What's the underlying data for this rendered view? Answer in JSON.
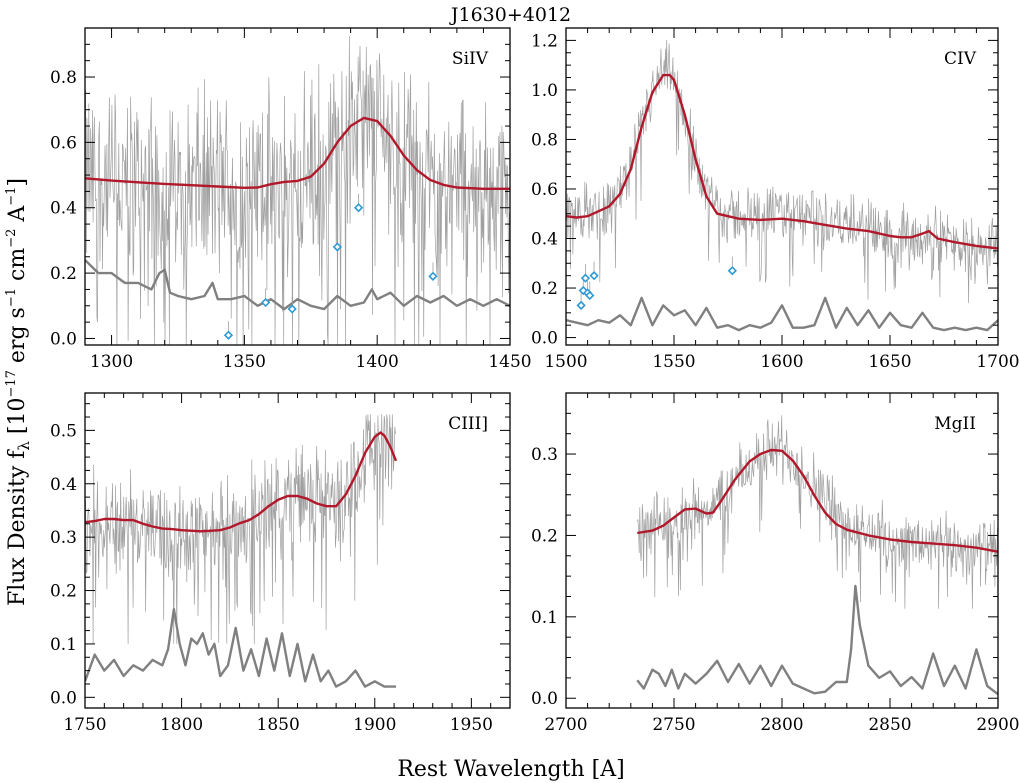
{
  "figure": {
    "title": "J1630+4012",
    "xlabel": "Rest Wavelength [A]",
    "ylabel_main": "Flux Density f",
    "ylabel_sub": "λ",
    "ylabel_unit_a": " [10",
    "ylabel_exp1": "−17",
    "ylabel_unit_b": " erg s",
    "ylabel_exp2": "−1",
    "ylabel_unit_c": " cm",
    "ylabel_exp3": "−2",
    "ylabel_unit_d": " A",
    "ylabel_exp4": "−1",
    "ylabel_close": "]"
  },
  "colors": {
    "model": "#b2182b",
    "error": "#808080",
    "spectrum": "#a0a0a0",
    "absorption_marker": "#2c9ad4"
  },
  "chart_data": [
    {
      "type": "line",
      "label": "SiIV",
      "xlim": [
        1290,
        1450
      ],
      "ylim": [
        -0.02,
        0.95
      ],
      "xticks": [
        1300,
        1350,
        1400,
        1450
      ],
      "yticks": [
        0.0,
        0.2,
        0.4,
        0.6,
        0.8
      ],
      "yticklabels": [
        "0.0",
        "0.2",
        "0.4",
        "0.6",
        "0.8"
      ],
      "model": {
        "x": [
          1290,
          1300,
          1310,
          1320,
          1330,
          1340,
          1350,
          1355,
          1360,
          1365,
          1370,
          1375,
          1380,
          1385,
          1390,
          1395,
          1400,
          1405,
          1410,
          1415,
          1420,
          1425,
          1430,
          1440,
          1450
        ],
        "y": [
          0.49,
          0.483,
          0.478,
          0.473,
          0.469,
          0.465,
          0.461,
          0.462,
          0.472,
          0.479,
          0.482,
          0.495,
          0.535,
          0.6,
          0.65,
          0.675,
          0.665,
          0.62,
          0.56,
          0.515,
          0.485,
          0.47,
          0.462,
          0.458,
          0.458
        ]
      },
      "error": {
        "x": [
          1290,
          1295,
          1300,
          1305,
          1310,
          1315,
          1318,
          1320,
          1322,
          1325,
          1330,
          1335,
          1338,
          1340,
          1345,
          1350,
          1355,
          1360,
          1365,
          1370,
          1375,
          1380,
          1385,
          1390,
          1395,
          1398,
          1400,
          1405,
          1410,
          1415,
          1420,
          1425,
          1430,
          1435,
          1440,
          1445,
          1450
        ],
        "y": [
          0.24,
          0.2,
          0.2,
          0.17,
          0.17,
          0.15,
          0.2,
          0.21,
          0.14,
          0.13,
          0.12,
          0.13,
          0.17,
          0.12,
          0.12,
          0.13,
          0.1,
          0.12,
          0.09,
          0.12,
          0.1,
          0.09,
          0.13,
          0.1,
          0.11,
          0.15,
          0.12,
          0.14,
          0.1,
          0.13,
          0.11,
          0.13,
          0.1,
          0.12,
          0.1,
          0.12,
          0.1
        ]
      },
      "spectrum": {
        "baseline_x": [
          1290,
          1350,
          1370,
          1380,
          1390,
          1395,
          1400,
          1410,
          1420,
          1450
        ],
        "baseline_y": [
          0.48,
          0.46,
          0.48,
          0.53,
          0.65,
          0.67,
          0.66,
          0.56,
          0.48,
          0.46
        ],
        "scatter": 0.3,
        "clip": [
          -0.02,
          0.95
        ]
      },
      "markers": {
        "x": [
          1344,
          1358,
          1368,
          1385,
          1393,
          1421
        ],
        "y": [
          0.01,
          0.11,
          0.09,
          0.28,
          0.4,
          0.19
        ]
      }
    },
    {
      "type": "line",
      "label": "CIV",
      "xlim": [
        1500,
        1700
      ],
      "ylim": [
        -0.03,
        1.25
      ],
      "xticks": [
        1500,
        1550,
        1600,
        1650,
        1700
      ],
      "yticks": [
        0.0,
        0.2,
        0.4,
        0.6,
        0.8,
        1.0,
        1.2
      ],
      "yticklabels": [
        "0.0",
        "0.2",
        "0.4",
        "0.6",
        "0.8",
        "1.0",
        "1.2"
      ],
      "model": {
        "x": [
          1500,
          1505,
          1510,
          1515,
          1520,
          1525,
          1530,
          1535,
          1540,
          1545,
          1548,
          1550,
          1555,
          1560,
          1565,
          1570,
          1580,
          1590,
          1600,
          1610,
          1620,
          1630,
          1640,
          1650,
          1655,
          1660,
          1665,
          1668,
          1672,
          1680,
          1690,
          1700
        ],
        "y": [
          0.49,
          0.485,
          0.49,
          0.51,
          0.53,
          0.58,
          0.68,
          0.85,
          0.99,
          1.06,
          1.06,
          1.04,
          0.9,
          0.72,
          0.57,
          0.5,
          0.48,
          0.475,
          0.48,
          0.47,
          0.455,
          0.44,
          0.43,
          0.41,
          0.405,
          0.405,
          0.42,
          0.43,
          0.4,
          0.385,
          0.37,
          0.36
        ]
      },
      "error": {
        "x": [
          1500,
          1505,
          1510,
          1515,
          1520,
          1525,
          1530,
          1535,
          1540,
          1545,
          1550,
          1555,
          1560,
          1565,
          1570,
          1575,
          1580,
          1585,
          1590,
          1595,
          1600,
          1605,
          1610,
          1615,
          1620,
          1625,
          1630,
          1635,
          1640,
          1645,
          1650,
          1655,
          1660,
          1665,
          1670,
          1675,
          1680,
          1685,
          1690,
          1695,
          1700
        ],
        "y": [
          0.07,
          0.06,
          0.05,
          0.07,
          0.06,
          0.09,
          0.05,
          0.16,
          0.05,
          0.13,
          0.09,
          0.11,
          0.05,
          0.12,
          0.04,
          0.05,
          0.03,
          0.05,
          0.04,
          0.06,
          0.13,
          0.04,
          0.04,
          0.05,
          0.16,
          0.04,
          0.12,
          0.05,
          0.11,
          0.04,
          0.1,
          0.05,
          0.04,
          0.1,
          0.04,
          0.03,
          0.04,
          0.03,
          0.04,
          0.03,
          0.07
        ]
      },
      "spectrum": {
        "baseline_x": [
          1500,
          1520,
          1530,
          1540,
          1547,
          1555,
          1565,
          1575,
          1600,
          1650,
          1700
        ],
        "baseline_y": [
          0.49,
          0.53,
          0.68,
          0.99,
          1.08,
          0.9,
          0.58,
          0.49,
          0.5,
          0.42,
          0.37
        ],
        "scatter": 0.12,
        "clip": [
          -0.03,
          1.25
        ]
      },
      "markers": {
        "x": [
          1507,
          1508,
          1509,
          1510,
          1511,
          1513,
          1577
        ],
        "y": [
          0.13,
          0.19,
          0.24,
          0.18,
          0.17,
          0.25,
          0.27
        ]
      }
    },
    {
      "type": "line",
      "label": "CIII]",
      "xlim": [
        1750,
        1970
      ],
      "ylim": [
        -0.02,
        0.57
      ],
      "xticks": [
        1750,
        1800,
        1850,
        1900,
        1950
      ],
      "yticks": [
        0.0,
        0.1,
        0.2,
        0.3,
        0.4,
        0.5
      ],
      "yticklabels": [
        "0.0",
        "0.1",
        "0.2",
        "0.3",
        "0.4",
        "0.5"
      ],
      "model": {
        "x": [
          1750,
          1755,
          1760,
          1765,
          1770,
          1775,
          1780,
          1785,
          1790,
          1795,
          1800,
          1810,
          1820,
          1825,
          1830,
          1835,
          1840,
          1845,
          1850,
          1855,
          1860,
          1865,
          1870,
          1875,
          1880,
          1885,
          1890,
          1895,
          1900,
          1903,
          1905,
          1908,
          1911
        ],
        "y": [
          0.328,
          0.33,
          0.334,
          0.334,
          0.332,
          0.332,
          0.325,
          0.32,
          0.316,
          0.315,
          0.313,
          0.311,
          0.313,
          0.318,
          0.326,
          0.332,
          0.343,
          0.358,
          0.37,
          0.377,
          0.377,
          0.372,
          0.363,
          0.358,
          0.358,
          0.38,
          0.415,
          0.458,
          0.488,
          0.496,
          0.49,
          0.47,
          0.443
        ]
      },
      "error": {
        "x": [
          1750,
          1755,
          1760,
          1765,
          1770,
          1775,
          1780,
          1785,
          1790,
          1793,
          1796,
          1799,
          1802,
          1805,
          1808,
          1811,
          1814,
          1817,
          1820,
          1824,
          1828,
          1832,
          1836,
          1840,
          1844,
          1848,
          1852,
          1856,
          1860,
          1864,
          1868,
          1872,
          1876,
          1880,
          1885,
          1890,
          1895,
          1900,
          1905,
          1911
        ],
        "y": [
          0.03,
          0.08,
          0.05,
          0.07,
          0.04,
          0.06,
          0.05,
          0.07,
          0.06,
          0.09,
          0.165,
          0.1,
          0.06,
          0.11,
          0.1,
          0.12,
          0.08,
          0.1,
          0.04,
          0.06,
          0.13,
          0.05,
          0.09,
          0.04,
          0.11,
          0.05,
          0.12,
          0.04,
          0.1,
          0.03,
          0.08,
          0.03,
          0.05,
          0.02,
          0.03,
          0.05,
          0.02,
          0.03,
          0.02,
          0.02
        ]
      },
      "spectrum": {
        "baseline_x": [
          1750,
          1800,
          1830,
          1850,
          1860,
          1880,
          1895,
          1905,
          1911
        ],
        "baseline_y": [
          0.33,
          0.31,
          0.32,
          0.37,
          0.38,
          0.36,
          0.46,
          0.49,
          0.45
        ],
        "scatter": 0.1,
        "clip": [
          0.1,
          0.53
        ]
      },
      "markers": {
        "x": [],
        "y": []
      }
    },
    {
      "type": "line",
      "label": "MgII",
      "xlim": [
        2700,
        2900
      ],
      "ylim": [
        -0.012,
        0.375
      ],
      "xticks": [
        2700,
        2750,
        2800,
        2850,
        2900
      ],
      "yticks": [
        0.0,
        0.1,
        0.2,
        0.3
      ],
      "yticklabels": [
        "0.0",
        "0.1",
        "0.2",
        "0.3"
      ],
      "model": {
        "x": [
          2733,
          2740,
          2745,
          2750,
          2755,
          2760,
          2765,
          2768,
          2772,
          2778,
          2785,
          2790,
          2795,
          2800,
          2805,
          2810,
          2815,
          2820,
          2825,
          2830,
          2840,
          2850,
          2860,
          2870,
          2880,
          2890,
          2900
        ],
        "y": [
          0.203,
          0.206,
          0.212,
          0.222,
          0.232,
          0.233,
          0.227,
          0.228,
          0.243,
          0.268,
          0.291,
          0.3,
          0.305,
          0.304,
          0.292,
          0.273,
          0.249,
          0.228,
          0.214,
          0.207,
          0.2,
          0.195,
          0.192,
          0.19,
          0.188,
          0.185,
          0.18
        ]
      },
      "error": {
        "x": [
          2733,
          2736,
          2740,
          2743,
          2746,
          2749,
          2752,
          2755,
          2760,
          2765,
          2770,
          2775,
          2780,
          2785,
          2790,
          2795,
          2800,
          2805,
          2810,
          2815,
          2820,
          2825,
          2830,
          2832,
          2834,
          2836,
          2840,
          2845,
          2850,
          2855,
          2860,
          2865,
          2870,
          2875,
          2880,
          2885,
          2890,
          2895,
          2900
        ],
        "y": [
          0.022,
          0.012,
          0.035,
          0.03,
          0.015,
          0.035,
          0.012,
          0.03,
          0.018,
          0.03,
          0.046,
          0.02,
          0.042,
          0.018,
          0.04,
          0.015,
          0.04,
          0.018,
          0.012,
          0.006,
          0.008,
          0.02,
          0.02,
          0.06,
          0.138,
          0.09,
          0.04,
          0.025,
          0.033,
          0.015,
          0.026,
          0.012,
          0.055,
          0.015,
          0.04,
          0.012,
          0.06,
          0.015,
          0.005
        ]
      },
      "spectrum": {
        "baseline_x": [
          2733,
          2760,
          2770,
          2790,
          2800,
          2810,
          2830,
          2860,
          2900
        ],
        "baseline_y": [
          0.2,
          0.23,
          0.24,
          0.3,
          0.31,
          0.28,
          0.21,
          0.19,
          0.18
        ],
        "scatter": 0.04,
        "clip": [
          0.11,
          0.37
        ]
      },
      "markers": {
        "x": [],
        "y": []
      }
    }
  ]
}
